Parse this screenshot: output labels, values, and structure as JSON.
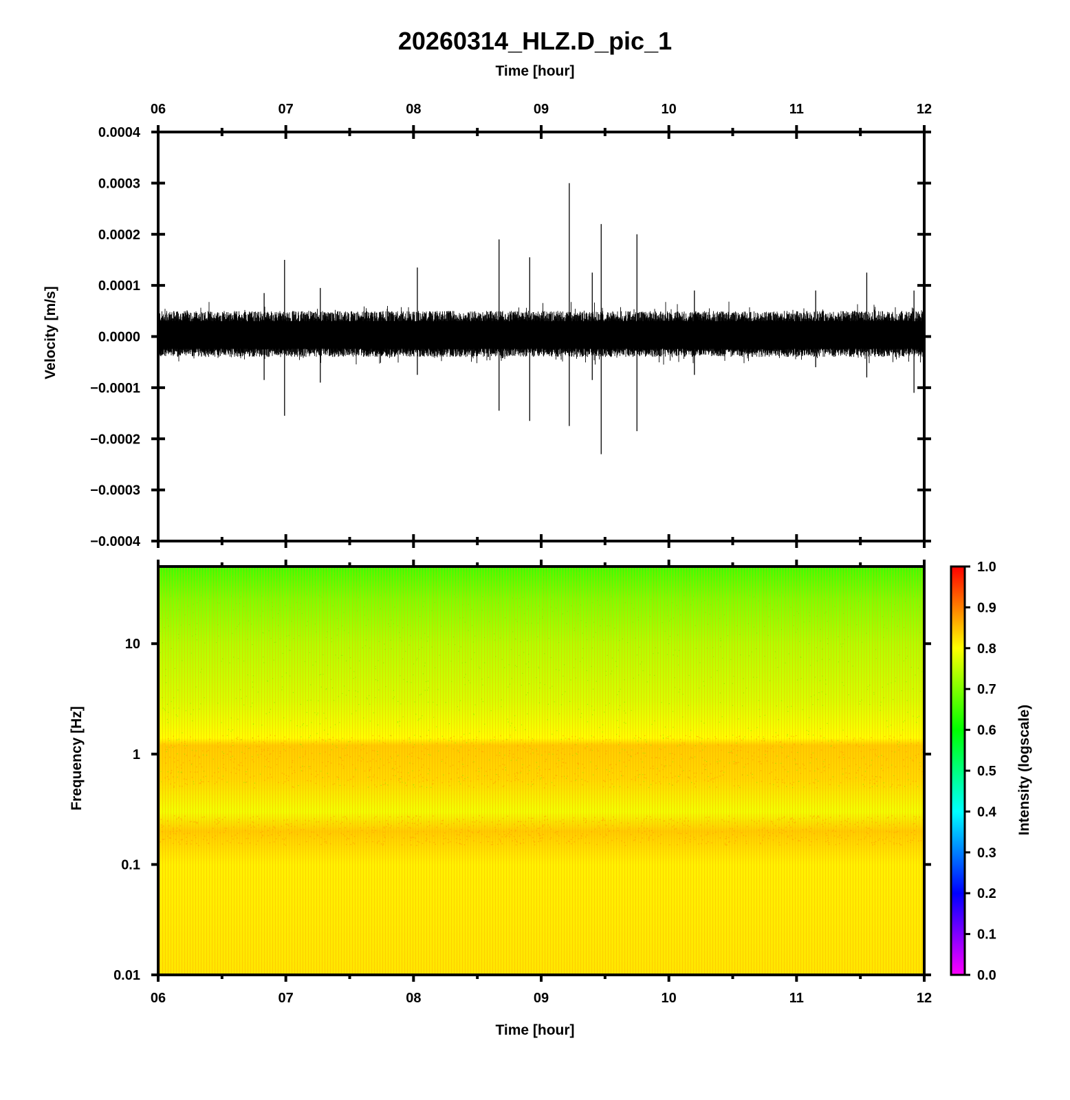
{
  "title": "20260314_HLZ.D_pic_1",
  "chart_data": [
    {
      "type": "line",
      "panel": "waveform",
      "title": "20260314_HLZ.D_pic_1",
      "xlabel": "Time [hour]",
      "ylabel": "Velocity [m/s]",
      "xlim": [
        6,
        12
      ],
      "ylim": [
        -0.0004,
        0.0004
      ],
      "x_ticks": [
        "06",
        "07",
        "08",
        "09",
        "10",
        "11",
        "12"
      ],
      "y_ticks": [
        "0.0004",
        "0.0003",
        "0.0002",
        "0.0001",
        "0.0000",
        "−0.0001",
        "−0.0002",
        "−0.0003",
        "−0.0004"
      ],
      "noise_band": [
        -4e-05,
        5e-05
      ],
      "spikes": [
        {
          "x": 6.99,
          "max": 0.00015,
          "min": -0.000155
        },
        {
          "x": 6.83,
          "max": 8.5e-05,
          "min": -8.5e-05
        },
        {
          "x": 7.27,
          "max": 9.5e-05,
          "min": -9e-05
        },
        {
          "x": 8.03,
          "max": 0.000135,
          "min": -7.5e-05
        },
        {
          "x": 8.67,
          "max": 0.00019,
          "min": -0.000145
        },
        {
          "x": 8.91,
          "max": 0.000155,
          "min": -0.000165
        },
        {
          "x": 9.22,
          "max": 0.0003,
          "min": -0.000175
        },
        {
          "x": 9.4,
          "max": 0.000125,
          "min": -8.5e-05
        },
        {
          "x": 9.47,
          "max": 0.00022,
          "min": -0.00023
        },
        {
          "x": 9.75,
          "max": 0.0002,
          "min": -0.000185
        },
        {
          "x": 10.2,
          "max": 9e-05,
          "min": -7.5e-05
        },
        {
          "x": 11.15,
          "max": 9e-05,
          "min": -6e-05
        },
        {
          "x": 11.55,
          "max": 0.000125,
          "min": -8e-05
        },
        {
          "x": 11.92,
          "max": 9e-05,
          "min": -0.00011
        }
      ]
    },
    {
      "type": "heatmap",
      "panel": "spectrogram",
      "xlabel": "Time [hour]",
      "ylabel": "Frequency [Hz]",
      "xlim": [
        6,
        12
      ],
      "ylim": [
        0.01,
        50
      ],
      "y_scale": "log",
      "x_ticks": [
        "06",
        "07",
        "08",
        "09",
        "10",
        "11",
        "12"
      ],
      "y_ticks": [
        {
          "value": 0.01,
          "label": "0.01"
        },
        {
          "value": 0.1,
          "label": "0.1"
        },
        {
          "value": 1,
          "label": "1"
        },
        {
          "value": 10,
          "label": "10"
        }
      ],
      "intensity_profile": [
        {
          "freq": 50,
          "intensity": 0.65
        },
        {
          "freq": 25,
          "intensity": 0.7
        },
        {
          "freq": 10,
          "intensity": 0.74
        },
        {
          "freq": 3,
          "intensity": 0.77
        },
        {
          "freq": 1.4,
          "intensity": 0.8
        },
        {
          "freq": 1.2,
          "intensity": 0.84
        },
        {
          "freq": 0.6,
          "intensity": 0.83
        },
        {
          "freq": 0.3,
          "intensity": 0.79
        },
        {
          "freq": 0.2,
          "intensity": 0.84
        },
        {
          "freq": 0.1,
          "intensity": 0.81
        },
        {
          "freq": 0.01,
          "intensity": 0.82
        }
      ],
      "colorbar": {
        "label": "Intensity (logscale)",
        "range": [
          0.0,
          1.0
        ],
        "ticks": [
          "1.0",
          "0.9",
          "0.8",
          "0.7",
          "0.6",
          "0.5",
          "0.4",
          "0.3",
          "0.2",
          "0.1",
          "0.0"
        ],
        "colors": [
          "#ff00ff",
          "#0000ff",
          "#00ffff",
          "#00ff00",
          "#ffff00",
          "#ff0000"
        ]
      }
    }
  ]
}
